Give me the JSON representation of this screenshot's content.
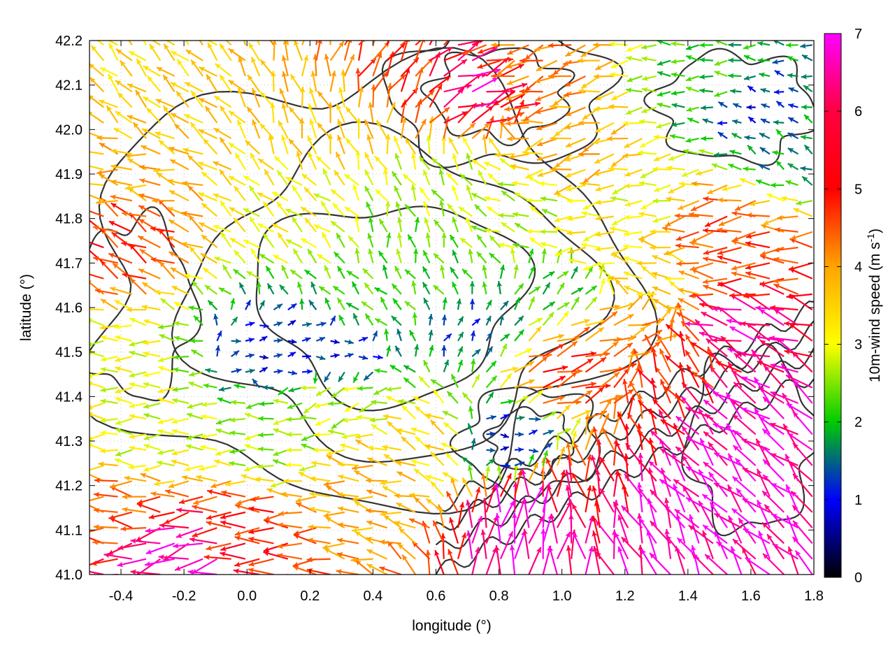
{
  "chart_data": {
    "type": "vector-field",
    "xlabel": "longitude (°)",
    "ylabel": "latitude (°)",
    "xlim": [
      -0.5,
      1.8
    ],
    "ylim": [
      41.0,
      42.2
    ],
    "xticks": [
      "-0.4",
      "-0.2",
      "0.0",
      "0.2",
      "0.4",
      "0.6",
      "0.8",
      "1.0",
      "1.2",
      "1.4",
      "1.6",
      "1.8"
    ],
    "yticks": [
      "41.0",
      "41.1",
      "41.2",
      "41.3",
      "41.4",
      "41.5",
      "41.6",
      "41.7",
      "41.8",
      "41.9",
      "42.0",
      "42.1",
      "42.2"
    ],
    "grid": true,
    "colorbar": {
      "label_main": "10m-wind speed (m s",
      "label_sup": "-1",
      "label_end": ")",
      "range": [
        0,
        7
      ],
      "ticks": [
        "0",
        "1",
        "2",
        "3",
        "4",
        "5",
        "6",
        "7"
      ],
      "colors": [
        "#000000",
        "#0000ff",
        "#00cc00",
        "#ffff00",
        "#ffa500",
        "#ff0000",
        "#ff00ff"
      ]
    },
    "wind_vectors": [
      {
        "lon": -0.4,
        "lat": 42.15,
        "speed": 4.0,
        "dir_deg": 135
      },
      {
        "lon": -0.3,
        "lat": 42.05,
        "speed": 4.2,
        "dir_deg": 140
      },
      {
        "lon": -0.4,
        "lat": 41.9,
        "speed": 4.5,
        "dir_deg": 170
      },
      {
        "lon": -0.4,
        "lat": 41.75,
        "speed": 5.5,
        "dir_deg": 150
      },
      {
        "lon": -0.4,
        "lat": 41.45,
        "speed": 3.5,
        "dir_deg": 180
      },
      {
        "lon": -0.3,
        "lat": 41.3,
        "speed": 3.4,
        "dir_deg": 180
      },
      {
        "lon": -0.4,
        "lat": 41.15,
        "speed": 5.2,
        "dir_deg": 175
      },
      {
        "lon": -0.2,
        "lat": 41.05,
        "speed": 6.8,
        "dir_deg": 195
      },
      {
        "lon": 0.0,
        "lat": 41.1,
        "speed": 5.6,
        "dir_deg": 180
      },
      {
        "lon": 0.1,
        "lat": 41.3,
        "speed": 3.0,
        "dir_deg": 180
      },
      {
        "lon": 0.1,
        "lat": 41.5,
        "speed": 1.2,
        "dir_deg": 10
      },
      {
        "lon": 0.3,
        "lat": 41.5,
        "speed": 1.3,
        "dir_deg": 0
      },
      {
        "lon": 0.4,
        "lat": 41.6,
        "speed": 2.6,
        "dir_deg": 135
      },
      {
        "lon": 0.5,
        "lat": 41.75,
        "speed": 2.8,
        "dir_deg": 100
      },
      {
        "lon": 0.6,
        "lat": 41.65,
        "speed": 2.5,
        "dir_deg": 120
      },
      {
        "lon": 0.7,
        "lat": 41.55,
        "speed": 1.6,
        "dir_deg": 60
      },
      {
        "lon": 0.6,
        "lat": 41.85,
        "speed": 3.2,
        "dir_deg": 120
      },
      {
        "lon": 0.2,
        "lat": 41.8,
        "speed": 3.6,
        "dir_deg": 140
      },
      {
        "lon": 0.3,
        "lat": 42.0,
        "speed": 4.2,
        "dir_deg": 110
      },
      {
        "lon": 0.5,
        "lat": 42.1,
        "speed": 5.5,
        "dir_deg": 60
      },
      {
        "lon": 0.7,
        "lat": 42.1,
        "speed": 6.5,
        "dir_deg": 20
      },
      {
        "lon": 0.9,
        "lat": 42.15,
        "speed": 5.0,
        "dir_deg": 200
      },
      {
        "lon": 1.1,
        "lat": 41.95,
        "speed": 4.5,
        "dir_deg": 200
      },
      {
        "lon": 1.3,
        "lat": 41.85,
        "speed": 3.5,
        "dir_deg": 190
      },
      {
        "lon": 1.5,
        "lat": 42.1,
        "speed": 2.5,
        "dir_deg": 180
      },
      {
        "lon": 1.6,
        "lat": 42.05,
        "speed": 1.3,
        "dir_deg": 160
      },
      {
        "lon": 1.7,
        "lat": 41.95,
        "speed": 2.0,
        "dir_deg": 150
      },
      {
        "lon": 1.5,
        "lat": 41.8,
        "speed": 5.3,
        "dir_deg": 190
      },
      {
        "lon": 1.6,
        "lat": 41.7,
        "speed": 5.4,
        "dir_deg": 180
      },
      {
        "lon": 1.6,
        "lat": 41.55,
        "speed": 6.6,
        "dir_deg": 160
      },
      {
        "lon": 1.6,
        "lat": 41.35,
        "speed": 6.8,
        "dir_deg": 140
      },
      {
        "lon": 1.5,
        "lat": 41.15,
        "speed": 6.9,
        "dir_deg": 135
      },
      {
        "lon": 1.3,
        "lat": 41.1,
        "speed": 6.8,
        "dir_deg": 115
      },
      {
        "lon": 1.1,
        "lat": 41.15,
        "speed": 6.0,
        "dir_deg": 100
      },
      {
        "lon": 0.9,
        "lat": 41.1,
        "speed": 6.9,
        "dir_deg": 80
      },
      {
        "lon": 0.8,
        "lat": 41.3,
        "speed": 1.2,
        "dir_deg": 0
      },
      {
        "lon": 1.0,
        "lat": 41.45,
        "speed": 5.5,
        "dir_deg": 20
      },
      {
        "lon": 1.2,
        "lat": 41.55,
        "speed": 4.8,
        "dir_deg": 20
      },
      {
        "lon": 1.0,
        "lat": 41.65,
        "speed": 2.4,
        "dir_deg": 45
      },
      {
        "lon": 1.1,
        "lat": 41.75,
        "speed": 3.8,
        "dir_deg": 190
      },
      {
        "lon": 0.9,
        "lat": 41.8,
        "speed": 3.2,
        "dir_deg": 160
      },
      {
        "lon": 0.6,
        "lat": 41.3,
        "speed": 4.0,
        "dir_deg": 150
      },
      {
        "lon": 0.4,
        "lat": 41.2,
        "speed": 4.5,
        "dir_deg": 170
      },
      {
        "lon": 0.3,
        "lat": 41.4,
        "speed": 3.2,
        "dir_deg": 200
      },
      {
        "lon": 1.4,
        "lat": 41.45,
        "speed": 5.6,
        "dir_deg": 120
      },
      {
        "lon": 1.3,
        "lat": 41.65,
        "speed": 4.0,
        "dir_deg": 160
      }
    ]
  }
}
